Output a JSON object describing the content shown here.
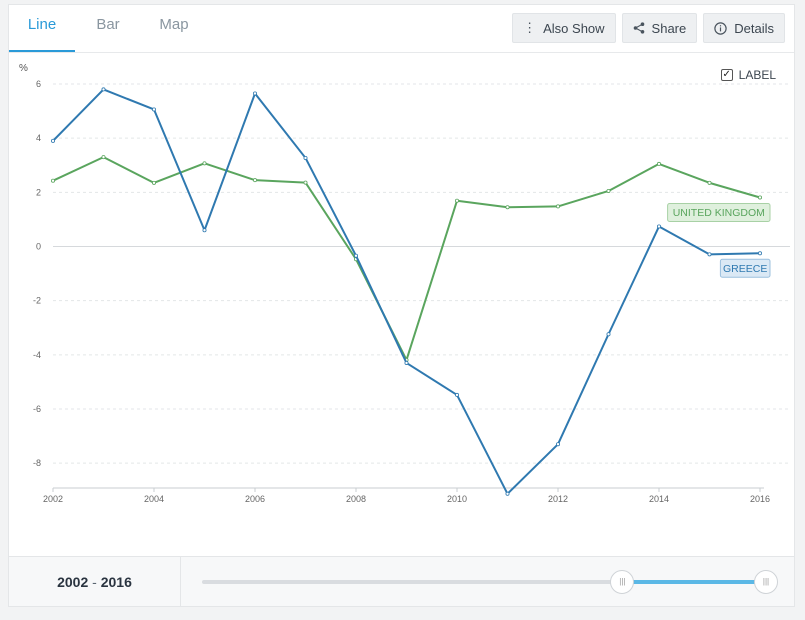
{
  "tabs": [
    {
      "label": "Line",
      "active": true
    },
    {
      "label": "Bar",
      "active": false
    },
    {
      "label": "Map",
      "active": false
    }
  ],
  "buttons": {
    "also_show": "Also Show",
    "share": "Share",
    "details": "Details"
  },
  "label_toggle": {
    "text": "LABEL",
    "checked": true
  },
  "footer": {
    "start_year": "2002",
    "end_year": "2016",
    "separator": "-"
  },
  "slider": {
    "range_min": 1961,
    "range_max": 2016,
    "selected_start": 2002,
    "selected_end": 2016
  },
  "chart_data": {
    "type": "line",
    "ylabel": "%",
    "xlim": [
      2002,
      2016
    ],
    "ylim": [
      -9,
      6
    ],
    "yticks": [
      "6",
      "4",
      "2",
      "0",
      "-2",
      "-4",
      "-6",
      "-8"
    ],
    "xticks": [
      "2002",
      "2004",
      "2006",
      "2008",
      "2010",
      "2012",
      "2014",
      "2016"
    ],
    "grid": true,
    "x": [
      2002,
      2003,
      2004,
      2005,
      2006,
      2007,
      2008,
      2009,
      2010,
      2011,
      2012,
      2013,
      2014,
      2015,
      2016
    ],
    "series": [
      {
        "name": "GREECE",
        "color": "#2f79b0",
        "label_bg": "#dbe9f5",
        "label_border": "#9cc0de",
        "values": [
          3.9,
          5.8,
          5.06,
          0.6,
          5.65,
          3.27,
          -0.34,
          -4.3,
          -5.48,
          -9.13,
          -7.3,
          -3.24,
          0.74,
          -0.29,
          -0.25
        ]
      },
      {
        "name": "UNITED KINGDOM",
        "color": "#5aa55e",
        "label_bg": "#dff0dd",
        "label_border": "#a8d1a5",
        "values": [
          2.43,
          3.3,
          2.35,
          3.07,
          2.45,
          2.36,
          -0.47,
          -4.19,
          1.69,
          1.45,
          1.48,
          2.05,
          3.05,
          2.35,
          1.81
        ]
      }
    ]
  }
}
